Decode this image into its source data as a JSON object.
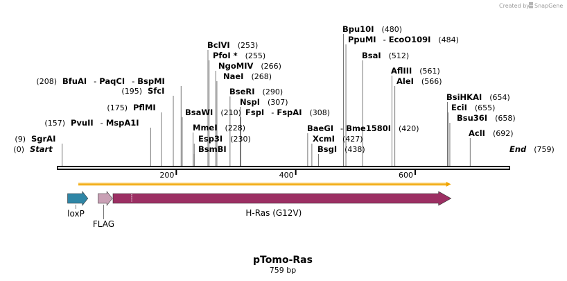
{
  "credit": {
    "prefix": "Created by",
    "brand": "SnapGene"
  },
  "map": {
    "name": "pTomo-Ras",
    "length_text": "759 bp",
    "length_bp": 759
  },
  "scale_ticks": [
    "200",
    "400",
    "600"
  ],
  "scale_tick_values": [
    200,
    400,
    600
  ],
  "sites": [
    {
      "name": "Start",
      "num": "(0)",
      "bp": 0,
      "kind": "end"
    },
    {
      "name": "SgrAI",
      "num": "(9)",
      "bp": 9
    },
    {
      "name": "PvuII",
      "extra": [
        "MspA1I"
      ],
      "num": "(157)",
      "bp": 157
    },
    {
      "name": "PflMI",
      "num": "(175)",
      "bp": 175
    },
    {
      "name": "SfcI",
      "num": "(195)",
      "bp": 195
    },
    {
      "name": "BfuAI",
      "extra": [
        "PaqCI",
        "BspMI"
      ],
      "num": "(208)",
      "bp": 208
    },
    {
      "name": "BsaWI",
      "num": "(210)",
      "bp": 210
    },
    {
      "name": "MmeI",
      "num": "(228)",
      "bp": 228
    },
    {
      "name": "Esp3I",
      "num": "(230)",
      "bp": 230
    },
    {
      "name": "BsmBI",
      "num": "",
      "bp": 230
    },
    {
      "name": "BclVI",
      "num": "(253)",
      "bp": 253
    },
    {
      "name": "PfoI *",
      "num": "(255)",
      "bp": 255
    },
    {
      "name": "NgoMIV",
      "num": "(266)",
      "bp": 266
    },
    {
      "name": "NaeI",
      "num": "(268)",
      "bp": 268
    },
    {
      "name": "BseRI",
      "num": "(290)",
      "bp": 290
    },
    {
      "name": "NspI",
      "num": "(307)",
      "bp": 307
    },
    {
      "name": "FspI",
      "extra": [
        "FspAI"
      ],
      "num": "(308)",
      "bp": 308
    },
    {
      "name": "BaeGI",
      "extra": [
        "Bme1580I"
      ],
      "num": "(420)",
      "bp": 420
    },
    {
      "name": "XcmI",
      "num": "(427)",
      "bp": 427
    },
    {
      "name": "BsgI",
      "num": "(438)",
      "bp": 438
    },
    {
      "name": "Bpu10I",
      "num": "(480)",
      "bp": 480
    },
    {
      "name": "PpuMI",
      "extra": [
        "EcoO109I"
      ],
      "num": "(484)",
      "bp": 484
    },
    {
      "name": "BsaI",
      "num": "(512)",
      "bp": 512
    },
    {
      "name": "AflIII",
      "num": "(561)",
      "bp": 561
    },
    {
      "name": "AleI",
      "num": "(566)",
      "bp": 566
    },
    {
      "name": "BsiHKAI",
      "num": "(654)",
      "bp": 654
    },
    {
      "name": "EciI",
      "num": "(655)",
      "bp": 655
    },
    {
      "name": "Bsu36I",
      "num": "(658)",
      "bp": 658
    },
    {
      "name": "AclI",
      "num": "(692)",
      "bp": 692
    },
    {
      "name": "End",
      "num": "(759)",
      "bp": 759,
      "kind": "end"
    }
  ],
  "orf_bar": {
    "start_bp": 36,
    "end_bp": 660,
    "color": "#f0a400"
  },
  "features": [
    {
      "name": "loxP",
      "start_bp": 18,
      "end_bp": 52,
      "color": "#2f86a6"
    },
    {
      "name": "FLAG",
      "start_bp": 69,
      "end_bp": 93,
      "color": "#c9a0b5"
    },
    {
      "name": "H-Ras (G12V)",
      "start_bp": 94,
      "end_bp": 660,
      "color": "#9c2f63"
    }
  ]
}
